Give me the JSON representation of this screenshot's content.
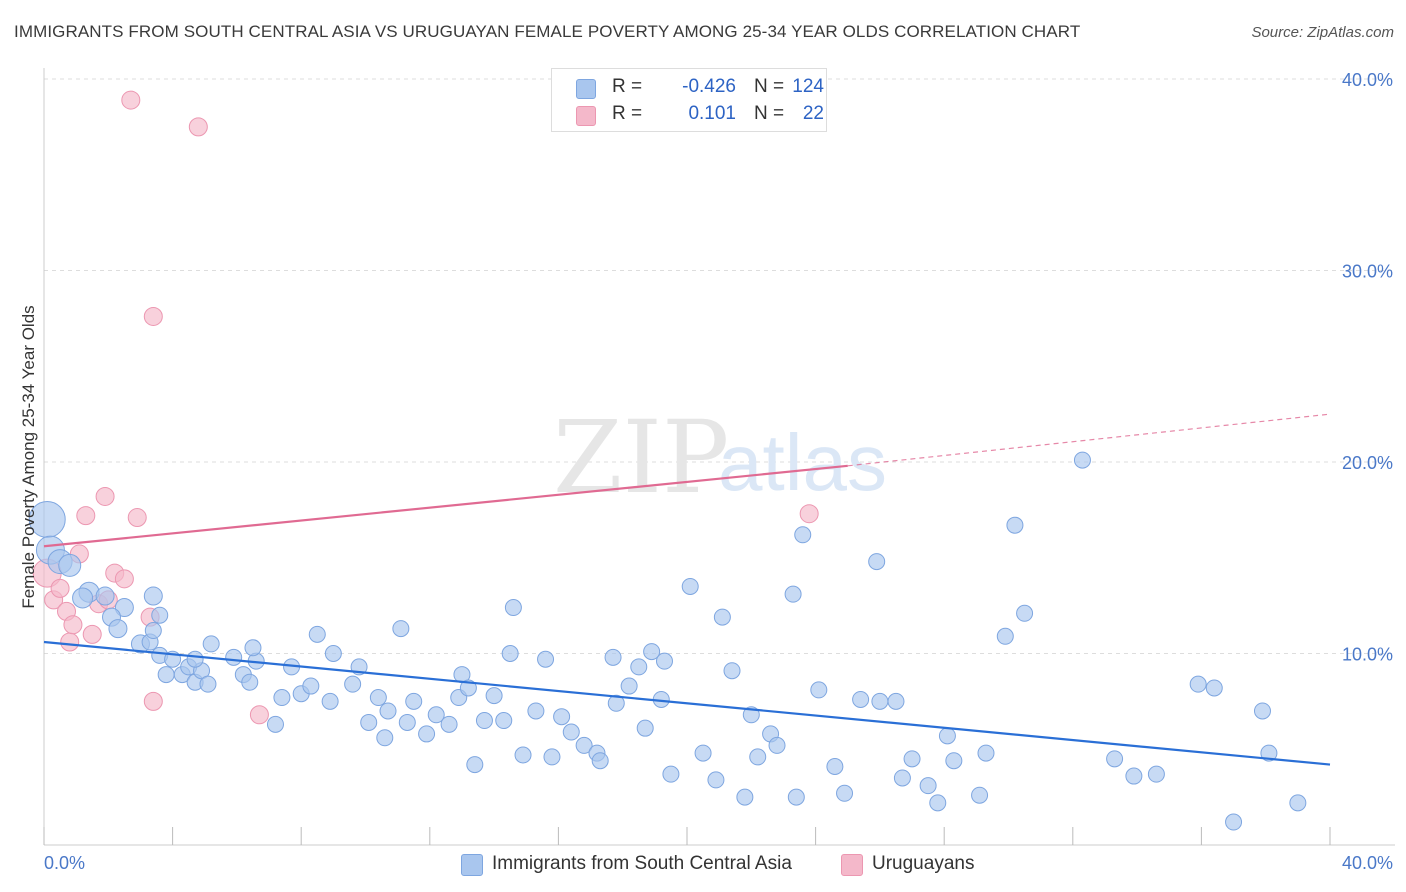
{
  "header": {
    "title": "IMMIGRANTS FROM SOUTH CENTRAL ASIA VS URUGUAYAN FEMALE POVERTY AMONG 25-34 YEAR OLDS CORRELATION CHART",
    "source": "Source: ZipAtlas.com"
  },
  "watermark": {
    "part1": "ZIP",
    "part2": "atlas"
  },
  "colors": {
    "blue_fill": "#a9c6ee",
    "blue_stroke": "#7ea6e0",
    "blue_line": "#2a6fd6",
    "pink_fill": "#f4b8ca",
    "pink_stroke": "#ec97b1",
    "pink_line": "#e06a92",
    "tick_text": "#4a78c8",
    "grid": "#dddddd"
  },
  "legend": {
    "rows": [
      {
        "r_label": "R =",
        "r_value": "-0.426",
        "n_label": "N =",
        "n_value": "124",
        "swatch": "#a9c6ee"
      },
      {
        "r_label": "R =",
        "r_value": "0.101",
        "n_label": "N =",
        "n_value": "22",
        "swatch": "#f4b8ca"
      }
    ]
  },
  "bottom_legend": [
    {
      "label": "Immigrants from South Central Asia",
      "swatch": "#a9c6ee"
    },
    {
      "label": "Uruguayans",
      "swatch": "#f4b8ca"
    }
  ],
  "chart_data": {
    "type": "scatter",
    "title": "IMMIGRANTS FROM SOUTH CENTRAL ASIA VS URUGUAYAN FEMALE POVERTY AMONG 25-34 YEAR OLDS CORRELATION CHART",
    "xlabel": "",
    "ylabel": "Female Poverty Among 25-34 Year Olds",
    "xlim": [
      0,
      40
    ],
    "ylim": [
      0,
      40
    ],
    "x_ticks": [
      "0.0%",
      "40.0%"
    ],
    "y_ticks": [
      {
        "value": 10,
        "label": "10.0%"
      },
      {
        "value": 20,
        "label": "20.0%"
      },
      {
        "value": 30,
        "label": "30.0%"
      },
      {
        "value": 40,
        "label": "40.0%"
      }
    ],
    "grid": "horizontal dashed",
    "legend_placement": "top-center",
    "series": [
      {
        "name": "Immigrants from South Central Asia",
        "color": "#a9c6ee",
        "trend": {
          "x": [
            0,
            40
          ],
          "y": [
            10.6,
            4.2
          ],
          "style": "solid"
        },
        "points": [
          [
            0.1,
            17.0,
            18
          ],
          [
            0.2,
            15.4,
            14
          ],
          [
            0.5,
            14.8,
            12
          ],
          [
            0.8,
            14.6,
            11
          ],
          [
            1.4,
            13.2,
            10
          ],
          [
            1.2,
            12.9,
            10
          ],
          [
            1.9,
            13.0,
            9
          ],
          [
            2.5,
            12.4,
            9
          ],
          [
            2.1,
            11.9,
            9
          ],
          [
            2.3,
            11.3,
            9
          ],
          [
            3.0,
            10.5,
            9
          ],
          [
            3.3,
            10.6,
            8
          ],
          [
            3.4,
            11.2,
            8
          ],
          [
            3.4,
            13.0,
            9
          ],
          [
            3.6,
            12.0,
            8
          ],
          [
            3.6,
            9.9,
            8
          ],
          [
            3.8,
            8.9,
            8
          ],
          [
            4.0,
            9.7,
            8
          ],
          [
            4.3,
            8.9,
            8
          ],
          [
            4.5,
            9.3,
            8
          ],
          [
            4.7,
            8.5,
            8
          ],
          [
            4.9,
            9.1,
            8
          ],
          [
            4.7,
            9.7,
            8
          ],
          [
            5.1,
            8.4,
            8
          ],
          [
            5.2,
            10.5,
            8
          ],
          [
            5.9,
            9.8,
            8
          ],
          [
            6.2,
            8.9,
            8
          ],
          [
            6.4,
            8.5,
            8
          ],
          [
            6.6,
            9.6,
            8
          ],
          [
            6.5,
            10.3,
            8
          ],
          [
            7.4,
            7.7,
            8
          ],
          [
            7.2,
            6.3,
            8
          ],
          [
            8.0,
            7.9,
            8
          ],
          [
            7.7,
            9.3,
            8
          ],
          [
            8.3,
            8.3,
            8
          ],
          [
            8.5,
            11.0,
            8
          ],
          [
            8.9,
            7.5,
            8
          ],
          [
            9.0,
            10.0,
            8
          ],
          [
            9.6,
            8.4,
            8
          ],
          [
            9.8,
            9.3,
            8
          ],
          [
            10.1,
            6.4,
            8
          ],
          [
            10.4,
            7.7,
            8
          ],
          [
            10.6,
            5.6,
            8
          ],
          [
            10.7,
            7.0,
            8
          ],
          [
            11.1,
            11.3,
            8
          ],
          [
            11.3,
            6.4,
            8
          ],
          [
            11.5,
            7.5,
            8
          ],
          [
            11.9,
            5.8,
            8
          ],
          [
            12.2,
            6.8,
            8
          ],
          [
            12.6,
            6.3,
            8
          ],
          [
            12.9,
            7.7,
            8
          ],
          [
            13.0,
            8.9,
            8
          ],
          [
            13.2,
            8.2,
            8
          ],
          [
            13.7,
            6.5,
            8
          ],
          [
            13.4,
            4.2,
            8
          ],
          [
            14.0,
            7.8,
            8
          ],
          [
            14.3,
            6.5,
            8
          ],
          [
            14.5,
            10.0,
            8
          ],
          [
            14.6,
            12.4,
            8
          ],
          [
            14.9,
            4.7,
            8
          ],
          [
            15.3,
            7.0,
            8
          ],
          [
            15.6,
            9.7,
            8
          ],
          [
            15.8,
            4.6,
            8
          ],
          [
            16.1,
            6.7,
            8
          ],
          [
            16.4,
            5.9,
            8
          ],
          [
            16.8,
            5.2,
            8
          ],
          [
            17.2,
            4.8,
            8
          ],
          [
            17.3,
            4.4,
            8
          ],
          [
            17.7,
            9.8,
            8
          ],
          [
            17.8,
            7.4,
            8
          ],
          [
            18.2,
            8.3,
            8
          ],
          [
            18.5,
            9.3,
            8
          ],
          [
            18.7,
            6.1,
            8
          ],
          [
            18.9,
            10.1,
            8
          ],
          [
            19.2,
            7.6,
            8
          ],
          [
            19.3,
            9.6,
            8
          ],
          [
            19.5,
            3.7,
            8
          ],
          [
            20.1,
            13.5,
            8
          ],
          [
            20.5,
            4.8,
            8
          ],
          [
            20.9,
            3.4,
            8
          ],
          [
            21.1,
            11.9,
            8
          ],
          [
            21.4,
            9.1,
            8
          ],
          [
            21.8,
            2.5,
            8
          ],
          [
            22.0,
            6.8,
            8
          ],
          [
            22.2,
            4.6,
            8
          ],
          [
            22.6,
            5.8,
            8
          ],
          [
            22.8,
            5.2,
            8
          ],
          [
            23.3,
            13.1,
            8
          ],
          [
            23.4,
            2.5,
            8
          ],
          [
            23.6,
            16.2,
            8
          ],
          [
            24.1,
            8.1,
            8
          ],
          [
            24.6,
            4.1,
            8
          ],
          [
            24.9,
            2.7,
            8
          ],
          [
            25.4,
            7.6,
            8
          ],
          [
            25.9,
            14.8,
            8
          ],
          [
            26.0,
            7.5,
            8
          ],
          [
            26.5,
            7.5,
            8
          ],
          [
            26.7,
            3.5,
            8
          ],
          [
            27.0,
            4.5,
            8
          ],
          [
            27.5,
            3.1,
            8
          ],
          [
            27.8,
            2.2,
            8
          ],
          [
            28.1,
            5.7,
            8
          ],
          [
            28.3,
            4.4,
            8
          ],
          [
            29.1,
            2.6,
            8
          ],
          [
            29.3,
            4.8,
            8
          ],
          [
            30.2,
            16.7,
            8
          ],
          [
            29.9,
            10.9,
            8
          ],
          [
            30.5,
            12.1,
            8
          ],
          [
            32.3,
            20.1,
            8
          ],
          [
            33.3,
            4.5,
            8
          ],
          [
            33.9,
            3.6,
            8
          ],
          [
            34.6,
            3.7,
            8
          ],
          [
            35.9,
            8.4,
            8
          ],
          [
            36.4,
            8.2,
            8
          ],
          [
            37.0,
            1.2,
            8
          ],
          [
            37.9,
            7.0,
            8
          ],
          [
            38.1,
            4.8,
            8
          ],
          [
            39.0,
            2.2,
            8
          ],
          [
            26.7,
            1.6,
            0
          ],
          [
            22.5,
            2.0,
            0
          ],
          [
            11.5,
            6.8,
            0
          ],
          [
            9.5,
            6.0,
            0
          ],
          [
            7.9,
            8.1,
            0
          ]
        ]
      },
      {
        "name": "Uruguayans",
        "color": "#f4b8ca",
        "trend": {
          "x": [
            0,
            25
          ],
          "y": [
            15.6,
            19.8
          ],
          "style": "solid",
          "dashed_extension": {
            "x": [
              25,
              40
            ],
            "y": [
              19.8,
              22.5
            ]
          }
        },
        "points": [
          [
            0.1,
            14.2,
            14
          ],
          [
            0.3,
            12.8,
            9
          ],
          [
            0.5,
            13.4,
            9
          ],
          [
            0.7,
            12.2,
            9
          ],
          [
            0.8,
            10.6,
            9
          ],
          [
            0.9,
            11.5,
            9
          ],
          [
            1.1,
            15.2,
            9
          ],
          [
            1.3,
            17.2,
            9
          ],
          [
            1.5,
            11.0,
            9
          ],
          [
            1.7,
            12.6,
            9
          ],
          [
            1.9,
            18.2,
            9
          ],
          [
            2.0,
            12.8,
            9
          ],
          [
            2.2,
            14.2,
            9
          ],
          [
            2.5,
            13.9,
            9
          ],
          [
            2.7,
            38.9,
            9
          ],
          [
            2.9,
            17.1,
            9
          ],
          [
            3.3,
            11.9,
            9
          ],
          [
            3.4,
            27.6,
            9
          ],
          [
            3.4,
            7.5,
            9
          ],
          [
            4.8,
            37.5,
            9
          ],
          [
            6.7,
            6.8,
            9
          ],
          [
            23.8,
            17.3,
            9
          ]
        ]
      }
    ]
  }
}
